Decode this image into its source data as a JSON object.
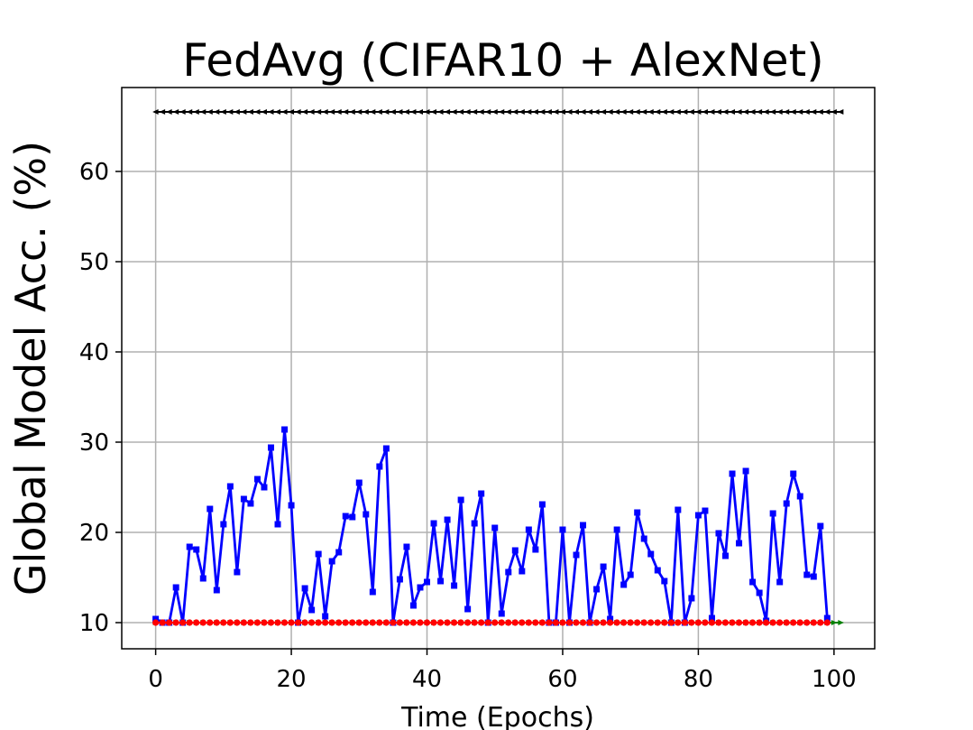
{
  "chart_data": {
    "type": "line",
    "title": "FedAvg (CIFAR10 + AlexNet)",
    "xlabel": "Time (Epochs)",
    "ylabel": "Global Model Acc. (%)",
    "xlim": [
      -5,
      106
    ],
    "ylim": [
      7.1,
      69.3
    ],
    "xticks": [
      0,
      20,
      40,
      60,
      80,
      100
    ],
    "yticks": [
      10,
      20,
      30,
      40,
      50,
      60
    ],
    "grid": true,
    "series": [
      {
        "color": "#000000",
        "marker": "triangle-left",
        "x_start": 0,
        "x_end": 101,
        "constant": 66.6
      },
      {
        "color": "#008000",
        "marker": "triangle-right",
        "x_start": 0,
        "x_end": 101,
        "constant": 10.0
      },
      {
        "color": "#0000ff",
        "marker": "square",
        "x_start": 0,
        "values": [
          10.4,
          10.0,
          10.0,
          13.9,
          10.0,
          18.4,
          18.1,
          14.9,
          22.6,
          13.6,
          20.9,
          25.1,
          15.6,
          23.7,
          23.2,
          25.9,
          25.0,
          29.4,
          20.9,
          31.4,
          23.0,
          10.0,
          13.8,
          11.4,
          17.6,
          10.7,
          16.8,
          17.8,
          21.8,
          21.7,
          25.5,
          22.0,
          13.4,
          27.3,
          29.3,
          10.0,
          14.8,
          18.4,
          11.9,
          13.9,
          14.5,
          21.0,
          14.6,
          21.4,
          14.1,
          23.6,
          11.5,
          21.0,
          24.3,
          10.0,
          20.5,
          11.0,
          15.6,
          18.0,
          15.7,
          20.3,
          18.1,
          23.1,
          10.0,
          10.0,
          20.3,
          10.0,
          17.5,
          20.8,
          10.0,
          13.7,
          16.2,
          10.4,
          20.3,
          14.2,
          15.3,
          22.2,
          19.3,
          17.6,
          15.8,
          14.6,
          10.0,
          22.5,
          10.0,
          12.7,
          21.9,
          22.4,
          10.5,
          19.9,
          17.4,
          26.5,
          18.8,
          26.8,
          14.5,
          13.3,
          10.2,
          22.1,
          14.5,
          23.2,
          26.5,
          24.0,
          15.3,
          15.1,
          20.7,
          10.5
        ]
      },
      {
        "color": "#ff0000",
        "marker": "circle",
        "x_start": 0,
        "x_end": 99,
        "constant": 10.0
      }
    ]
  }
}
